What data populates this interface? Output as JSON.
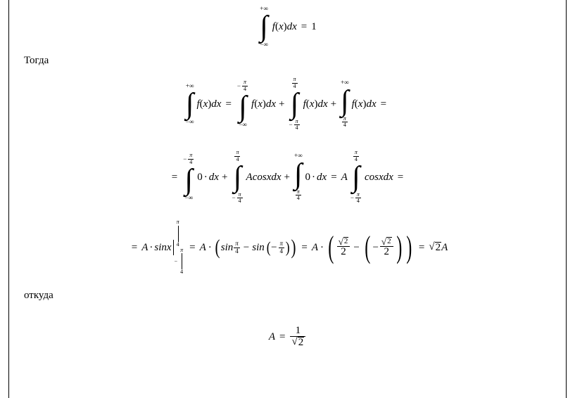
{
  "colors": {
    "text": "#000000",
    "background": "#ffffff",
    "rule": "#000000"
  },
  "typography": {
    "family": "Times New Roman",
    "base_size_pt": 11,
    "script_size_pt": 7
  },
  "text": {
    "then": "Тогда",
    "whence": "откуда"
  },
  "sym": {
    "inf_plus": "+∞",
    "inf_minus": "−∞",
    "pi": "π",
    "four": "4",
    "minus": "−",
    "plus": "+",
    "eq": "=",
    "dot": "·",
    "one": "1",
    "zero": "0",
    "two": "2",
    "A": "A",
    "f": "f",
    "x": "x",
    "dx": "dx",
    "cos": "cos",
    "sin": "sin",
    "sinx": "sinx",
    "open": "(",
    "close": ")",
    "sqrt2": "2",
    "over_sqrt2": "√2"
  },
  "equations": {
    "line1": "∫_{−∞}^{+∞} f(x) dx = 1",
    "line2": "∫_{−∞}^{+∞} f(x) dx = ∫_{−∞}^{−π/4} f(x) dx + ∫_{−π/4}^{π/4} f(x) dx + ∫_{π/4}^{+∞} f(x) dx =",
    "line3": "= ∫_{−∞}^{−π/4} 0·dx + ∫_{−π/4}^{π/4} A cos x dx + ∫_{π/4}^{+∞} 0·dx = A ∫_{−π/4}^{π/4} cos x dx =",
    "line4": "= A · sin x |_{−π/4}^{π/4} = A · ( sin(π/4) − sin(−π/4) ) = A · ( √2/2 − (−√2/2) ) = √2 A",
    "line5": "A = 1 / √2"
  }
}
